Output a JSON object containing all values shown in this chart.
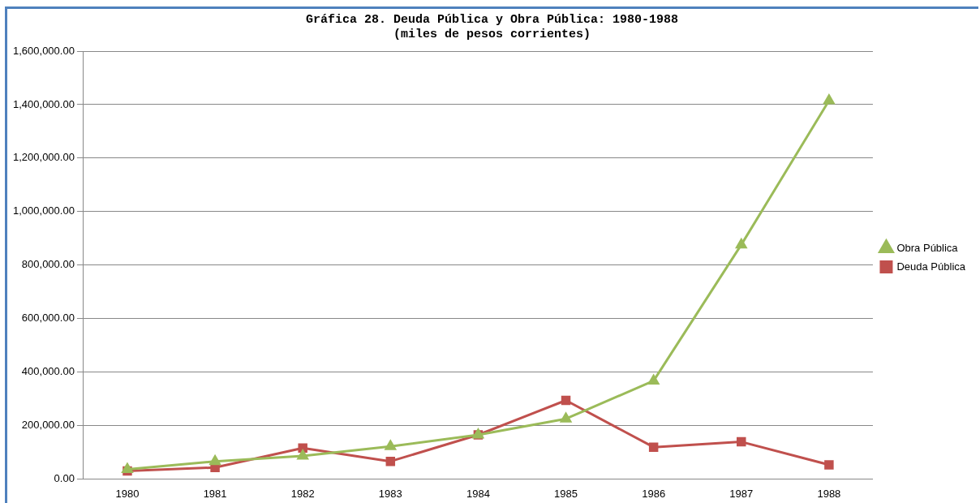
{
  "chart_data": {
    "type": "line",
    "title": "Gráfica 28. Deuda Pública y Obra Pública: 1980-1988",
    "subtitle": "(miles de pesos corrientes)",
    "categories": [
      "1980",
      "1981",
      "1982",
      "1983",
      "1984",
      "1985",
      "1986",
      "1987",
      "1988"
    ],
    "series": [
      {
        "name": "Deuda Pública",
        "color": "#c0504d",
        "marker": "square",
        "values": [
          30000,
          43000,
          116000,
          66000,
          165000,
          294000,
          119000,
          139000,
          53000
        ]
      },
      {
        "name": "Obra Pública",
        "color": "#9bbb59",
        "marker": "triangle",
        "values": [
          36000,
          66000,
          86000,
          122000,
          165000,
          225000,
          367000,
          876000,
          1415000
        ]
      }
    ],
    "ylim": [
      0,
      1600000
    ],
    "yticks": [
      {
        "value": 0,
        "label": "0.00"
      },
      {
        "value": 200000,
        "label": "200,000.00"
      },
      {
        "value": 400000,
        "label": "400,000.00"
      },
      {
        "value": 600000,
        "label": "600,000.00"
      },
      {
        "value": 800000,
        "label": "800,000.00"
      },
      {
        "value": 1000000,
        "label": "1,000,000.00"
      },
      {
        "value": 1200000,
        "label": "1,200,000.00"
      },
      {
        "value": 1400000,
        "label": "1,400,000.00"
      },
      {
        "value": 1600000,
        "label": "1,600,000.00"
      }
    ],
    "grid": "y",
    "legend": "right",
    "line_style": "solid"
  }
}
